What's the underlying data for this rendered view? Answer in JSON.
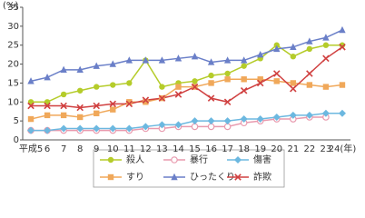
{
  "chart_data": {
    "type": "line",
    "y_label": "(%)",
    "categories": [
      "平成5",
      "6",
      "7",
      "8",
      "9",
      "10",
      "11",
      "12",
      "13",
      "14",
      "15",
      "16",
      "17",
      "18",
      "19",
      "20",
      "21",
      "22",
      "23",
      "24(年)"
    ],
    "series": [
      {
        "name": "殺人",
        "color": "#b5cc2a",
        "marker": "circle",
        "values": [
          10,
          10,
          12,
          13,
          14,
          14.5,
          15,
          21,
          14,
          15,
          15.5,
          17,
          17.5,
          19.5,
          21.5,
          25,
          22,
          24,
          25,
          25
        ]
      },
      {
        "name": "暴行",
        "color": "#e89aae",
        "marker": "open-circle",
        "values": [
          2.5,
          2.5,
          2.5,
          2.5,
          2.5,
          2.5,
          2.5,
          3,
          3,
          3.5,
          3.5,
          3.5,
          3.5,
          4.5,
          5,
          5.5,
          5.5,
          6,
          6,
          null
        ]
      },
      {
        "name": "傷害",
        "color": "#6cb8e0",
        "marker": "diamond",
        "values": [
          2.5,
          2.5,
          3,
          3,
          3,
          3,
          3,
          3.5,
          4,
          4,
          5,
          5,
          5,
          5.5,
          5.5,
          6,
          6.5,
          6.5,
          7,
          7
        ]
      },
      {
        "name": "すり",
        "color": "#f0a85a",
        "marker": "square",
        "values": [
          5.5,
          6.5,
          6.5,
          6,
          7,
          8,
          10,
          10,
          11,
          14,
          14,
          15,
          16,
          16,
          16,
          15.5,
          15,
          14.5,
          14,
          14.5
        ]
      },
      {
        "name": "ひったくり",
        "color": "#6a7fc8",
        "marker": "triangle",
        "values": [
          15.5,
          16.5,
          18.5,
          18.5,
          19.5,
          20,
          21,
          21,
          21,
          21.5,
          22,
          20.5,
          21,
          21,
          22.5,
          24,
          24.5,
          26,
          27,
          29
        ]
      },
      {
        "name": "詐欺",
        "color": "#d04040",
        "marker": "x",
        "values": [
          9,
          9,
          9,
          8.5,
          9,
          9.5,
          9.5,
          10.5,
          11,
          12,
          14,
          11,
          10,
          13,
          15,
          17.5,
          13.5,
          17.5,
          21.5,
          24.5
        ]
      }
    ],
    "ylim": [
      0,
      35
    ],
    "yticks": [
      0,
      5,
      10,
      15,
      20,
      25,
      30,
      35
    ],
    "grid": false
  }
}
